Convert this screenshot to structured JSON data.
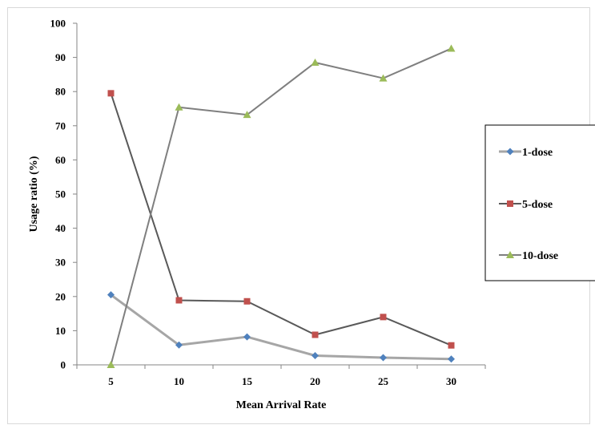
{
  "chart_data": {
    "type": "line",
    "title": "",
    "xlabel": "Mean Arrival Rate",
    "ylabel": "Usage ratio (%)",
    "x": [
      5,
      10,
      15,
      20,
      25,
      30
    ],
    "ylim": [
      0,
      100
    ],
    "yticks": [
      0,
      10,
      20,
      30,
      40,
      50,
      60,
      70,
      80,
      90,
      100
    ],
    "grid": false,
    "legend_position": "right",
    "series": [
      {
        "name": "1-dose",
        "values": [
          20.5,
          5.8,
          8.2,
          2.7,
          2.1,
          1.7
        ],
        "line_color": "#a6a6a6",
        "marker": "diamond",
        "marker_color": "#4f81bd"
      },
      {
        "name": "5-dose",
        "values": [
          79.5,
          18.9,
          18.6,
          8.8,
          14.0,
          5.7
        ],
        "line_color": "#595959",
        "marker": "square",
        "marker_color": "#c0504d"
      },
      {
        "name": "10-dose",
        "values": [
          0.0,
          75.4,
          73.2,
          88.5,
          83.9,
          92.6
        ],
        "line_color": "#7f7f7f",
        "marker": "triangle",
        "marker_color": "#9bbb59"
      }
    ]
  }
}
